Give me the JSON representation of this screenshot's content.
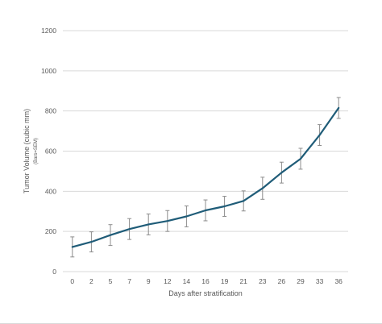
{
  "chart_data": {
    "type": "line",
    "title": "",
    "xlabel": "Days after stratification",
    "ylabel": "Tumor Volume (cubic mm)",
    "ylabel_sub": "(Bars=SEM)",
    "categories": [
      "0",
      "2",
      "5",
      "7",
      "9",
      "12",
      "14",
      "16",
      "19",
      "21",
      "23",
      "26",
      "29",
      "33",
      "36"
    ],
    "series": [
      {
        "values": [
          123,
          148,
          182,
          212,
          235,
          252,
          275,
          305,
          325,
          352,
          415,
          493,
          562,
          680,
          815
        ],
        "error": [
          50,
          50,
          52,
          52,
          52,
          52,
          52,
          52,
          50,
          50,
          55,
          52,
          52,
          52,
          52
        ]
      }
    ],
    "ylim": [
      0,
      1200
    ],
    "yticks": [
      "0",
      "200",
      "400",
      "600",
      "800",
      "1000",
      "1200"
    ],
    "grid": true,
    "colors": {
      "line": "#1f5c78",
      "error_bar": "#8c8c8c",
      "grid": "#d9d9d9"
    }
  }
}
